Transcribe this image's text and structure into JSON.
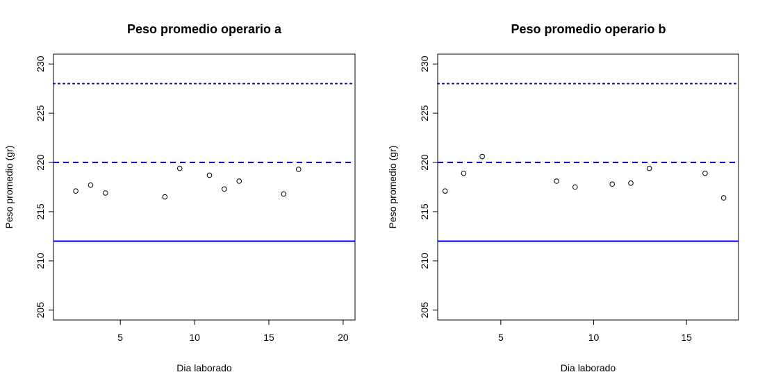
{
  "chart_data": [
    {
      "type": "scatter",
      "title": "Peso promedio operario a",
      "xlabel": "Dia laborado",
      "ylabel": "Peso promedio (gr)",
      "xlim": [
        0.5,
        20.8
      ],
      "ylim": [
        204,
        231
      ],
      "xticks": [
        5,
        10,
        15,
        20
      ],
      "yticks": [
        205,
        210,
        215,
        220,
        225,
        230
      ],
      "grid": false,
      "point_style": "open-circle",
      "point_color": "#000000",
      "points": [
        {
          "x": 2,
          "y": 217.1
        },
        {
          "x": 3,
          "y": 217.7
        },
        {
          "x": 4,
          "y": 216.9
        },
        {
          "x": 8,
          "y": 216.5
        },
        {
          "x": 9,
          "y": 219.4
        },
        {
          "x": 11,
          "y": 218.7
        },
        {
          "x": 12,
          "y": 217.3
        },
        {
          "x": 13,
          "y": 218.1
        },
        {
          "x": 16,
          "y": 216.8
        },
        {
          "x": 17,
          "y": 219.3
        }
      ],
      "reference_lines": [
        {
          "y": 228,
          "style": "dotted",
          "color": "#000099"
        },
        {
          "y": 220,
          "style": "dashed",
          "color": "#0000ff"
        },
        {
          "y": 212,
          "style": "solid",
          "color": "#0000ff"
        }
      ]
    },
    {
      "type": "scatter",
      "title": "Peso promedio operario b",
      "xlabel": "Dia laborado",
      "ylabel": "Peso promedio (gr)",
      "xlim": [
        1.6,
        17.8
      ],
      "ylim": [
        204,
        231
      ],
      "xticks": [
        5,
        10,
        15
      ],
      "yticks": [
        205,
        210,
        215,
        220,
        225,
        230
      ],
      "grid": false,
      "point_style": "open-circle",
      "point_color": "#000000",
      "points": [
        {
          "x": 2,
          "y": 217.1
        },
        {
          "x": 3,
          "y": 218.9
        },
        {
          "x": 4,
          "y": 220.6
        },
        {
          "x": 8,
          "y": 218.1
        },
        {
          "x": 9,
          "y": 217.5
        },
        {
          "x": 11,
          "y": 217.8
        },
        {
          "x": 12,
          "y": 217.9
        },
        {
          "x": 13,
          "y": 219.4
        },
        {
          "x": 16,
          "y": 218.9
        },
        {
          "x": 17,
          "y": 216.4
        }
      ],
      "reference_lines": [
        {
          "y": 228,
          "style": "dotted",
          "color": "#000099"
        },
        {
          "y": 220,
          "style": "dashed",
          "color": "#0000ff"
        },
        {
          "y": 212,
          "style": "solid",
          "color": "#0000ff"
        }
      ]
    }
  ]
}
